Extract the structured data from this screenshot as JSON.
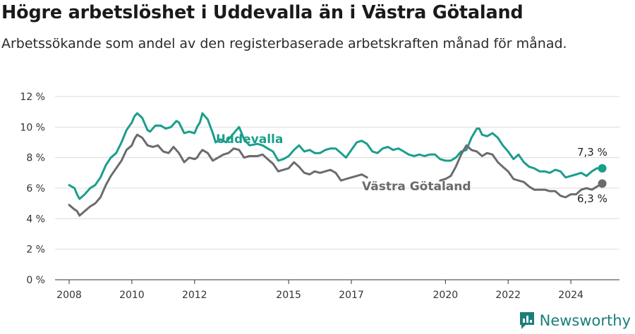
{
  "title": "Högre arbetslöshet i Uddevalla än i Västra Götaland",
  "subtitle": "Arbetssökande som andel av den registerbaserade arbetskraften månad för månad.",
  "brand": "Newsworthy",
  "chart_data": {
    "type": "line",
    "xlim": [
      2007.55,
      2025.55
    ],
    "ylim": [
      0,
      12
    ],
    "y_ticks": [
      0,
      2,
      4,
      6,
      8,
      10,
      12
    ],
    "y_tick_labels": [
      "0 %",
      "2 %",
      "4 %",
      "6 %",
      "8 %",
      "10 %",
      "12 %"
    ],
    "x_ticks": [
      2008,
      2010,
      2012,
      2015,
      2017,
      2020,
      2022,
      2024
    ],
    "x_tick_labels": [
      "2008",
      "2010",
      "2012",
      "2015",
      "2017",
      "2020",
      "2022",
      "2024"
    ],
    "grid": "horizontal",
    "series": [
      {
        "name": "Uddevalla",
        "color": "#1a9e8c",
        "end_label": "7,3 %",
        "points": [
          [
            2008.0,
            6.2
          ],
          [
            2008.17,
            6.0
          ],
          [
            2008.25,
            5.6
          ],
          [
            2008.33,
            5.3
          ],
          [
            2008.5,
            5.6
          ],
          [
            2008.67,
            6.0
          ],
          [
            2008.83,
            6.2
          ],
          [
            2009.0,
            6.7
          ],
          [
            2009.17,
            7.5
          ],
          [
            2009.33,
            8.0
          ],
          [
            2009.5,
            8.3
          ],
          [
            2009.67,
            9.0
          ],
          [
            2009.83,
            9.8
          ],
          [
            2010.0,
            10.3
          ],
          [
            2010.08,
            10.7
          ],
          [
            2010.17,
            10.9
          ],
          [
            2010.33,
            10.6
          ],
          [
            2010.5,
            9.8
          ],
          [
            2010.58,
            9.7
          ],
          [
            2010.75,
            10.1
          ],
          [
            2010.92,
            10.1
          ],
          [
            2011.08,
            9.9
          ],
          [
            2011.25,
            10.0
          ],
          [
            2011.42,
            10.4
          ],
          [
            2011.5,
            10.3
          ],
          [
            2011.67,
            9.6
          ],
          [
            2011.83,
            9.7
          ],
          [
            2012.0,
            9.6
          ],
          [
            2012.08,
            10.0
          ],
          [
            2012.17,
            10.3
          ],
          [
            2012.25,
            10.9
          ],
          [
            2012.42,
            10.5
          ],
          [
            2012.58,
            9.6
          ],
          [
            2012.67,
            9.0
          ],
          [
            2012.83,
            9.2
          ],
          [
            2013.0,
            9.0
          ],
          [
            2013.17,
            9.4
          ],
          [
            2013.33,
            9.8
          ],
          [
            2013.42,
            10.0
          ],
          [
            2013.58,
            9.2
          ],
          [
            2013.75,
            8.8
          ],
          [
            2014.0,
            8.9
          ],
          [
            2014.17,
            8.8
          ],
          [
            2014.33,
            8.6
          ],
          [
            2014.5,
            8.4
          ],
          [
            2014.67,
            7.8
          ],
          [
            2014.83,
            7.9
          ],
          [
            2015.0,
            8.1
          ],
          [
            2015.17,
            8.5
          ],
          [
            2015.33,
            8.8
          ],
          [
            2015.5,
            8.4
          ],
          [
            2015.67,
            8.5
          ],
          [
            2015.83,
            8.3
          ],
          [
            2016.0,
            8.3
          ],
          [
            2016.17,
            8.5
          ],
          [
            2016.33,
            8.6
          ],
          [
            2016.5,
            8.6
          ],
          [
            2016.67,
            8.3
          ],
          [
            2016.83,
            8.0
          ],
          [
            2017.0,
            8.5
          ],
          [
            2017.17,
            9.0
          ],
          [
            2017.33,
            9.1
          ],
          [
            2017.5,
            8.9
          ],
          [
            2017.67,
            8.4
          ],
          [
            2017.83,
            8.3
          ],
          [
            2018.0,
            8.6
          ],
          [
            2018.17,
            8.7
          ],
          [
            2018.33,
            8.5
          ],
          [
            2018.5,
            8.6
          ],
          [
            2018.67,
            8.4
          ],
          [
            2018.83,
            8.2
          ],
          [
            2019.0,
            8.1
          ],
          [
            2019.17,
            8.2
          ],
          [
            2019.33,
            8.1
          ],
          [
            2019.5,
            8.2
          ],
          [
            2019.67,
            8.2
          ],
          [
            2019.83,
            7.9
          ],
          [
            2020.0,
            7.8
          ],
          [
            2020.17,
            7.8
          ],
          [
            2020.33,
            8.0
          ],
          [
            2020.5,
            8.4
          ],
          [
            2020.67,
            8.5
          ],
          [
            2020.83,
            9.3
          ],
          [
            2021.0,
            9.9
          ],
          [
            2021.08,
            9.9
          ],
          [
            2021.17,
            9.5
          ],
          [
            2021.33,
            9.4
          ],
          [
            2021.5,
            9.6
          ],
          [
            2021.67,
            9.3
          ],
          [
            2021.83,
            8.8
          ],
          [
            2022.0,
            8.4
          ],
          [
            2022.17,
            7.9
          ],
          [
            2022.33,
            8.2
          ],
          [
            2022.5,
            7.7
          ],
          [
            2022.67,
            7.4
          ],
          [
            2022.83,
            7.3
          ],
          [
            2023.0,
            7.1
          ],
          [
            2023.17,
            7.1
          ],
          [
            2023.33,
            7.0
          ],
          [
            2023.5,
            7.2
          ],
          [
            2023.67,
            7.1
          ],
          [
            2023.83,
            6.7
          ],
          [
            2024.0,
            6.8
          ],
          [
            2024.17,
            6.9
          ],
          [
            2024.33,
            7.0
          ],
          [
            2024.5,
            6.8
          ],
          [
            2024.67,
            7.1
          ],
          [
            2024.83,
            7.3
          ],
          [
            2025.0,
            7.3
          ]
        ]
      },
      {
        "name": "Västra Götaland",
        "color": "#6b6b6f",
        "end_label": "6,3 %",
        "points": [
          [
            2008.0,
            4.9
          ],
          [
            2008.17,
            4.6
          ],
          [
            2008.25,
            4.5
          ],
          [
            2008.33,
            4.2
          ],
          [
            2008.5,
            4.5
          ],
          [
            2008.67,
            4.8
          ],
          [
            2008.83,
            5.0
          ],
          [
            2009.0,
            5.4
          ],
          [
            2009.17,
            6.2
          ],
          [
            2009.33,
            6.8
          ],
          [
            2009.5,
            7.3
          ],
          [
            2009.67,
            7.8
          ],
          [
            2009.83,
            8.5
          ],
          [
            2010.0,
            8.8
          ],
          [
            2010.08,
            9.2
          ],
          [
            2010.17,
            9.5
          ],
          [
            2010.33,
            9.3
          ],
          [
            2010.5,
            8.8
          ],
          [
            2010.67,
            8.7
          ],
          [
            2010.83,
            8.8
          ],
          [
            2011.0,
            8.4
          ],
          [
            2011.17,
            8.3
          ],
          [
            2011.33,
            8.7
          ],
          [
            2011.5,
            8.3
          ],
          [
            2011.67,
            7.7
          ],
          [
            2011.83,
            8.0
          ],
          [
            2012.0,
            7.9
          ],
          [
            2012.08,
            8.0
          ],
          [
            2012.17,
            8.3
          ],
          [
            2012.25,
            8.5
          ],
          [
            2012.42,
            8.3
          ],
          [
            2012.58,
            7.8
          ],
          [
            2012.75,
            8.0
          ],
          [
            2012.92,
            8.2
          ],
          [
            2013.08,
            8.3
          ],
          [
            2013.25,
            8.6
          ],
          [
            2013.42,
            8.5
          ],
          [
            2013.58,
            8.0
          ],
          [
            2013.75,
            8.1
          ],
          [
            2014.0,
            8.1
          ],
          [
            2014.17,
            8.2
          ],
          [
            2014.33,
            7.9
          ],
          [
            2014.5,
            7.6
          ],
          [
            2014.67,
            7.1
          ],
          [
            2014.83,
            7.2
          ],
          [
            2015.0,
            7.3
          ],
          [
            2015.17,
            7.7
          ],
          [
            2015.33,
            7.4
          ],
          [
            2015.5,
            7.0
          ],
          [
            2015.67,
            6.9
          ],
          [
            2015.83,
            7.1
          ],
          [
            2016.0,
            7.0
          ],
          [
            2016.17,
            7.1
          ],
          [
            2016.33,
            7.2
          ],
          [
            2016.5,
            7.0
          ],
          [
            2016.67,
            6.5
          ],
          [
            2016.83,
            6.6
          ],
          [
            2017.0,
            6.7
          ],
          [
            2017.17,
            6.8
          ],
          [
            2017.33,
            6.9
          ],
          [
            2017.5,
            6.7
          ],
          [
            2019.83,
            6.5
          ],
          [
            2020.0,
            6.6
          ],
          [
            2020.17,
            6.8
          ],
          [
            2020.33,
            7.4
          ],
          [
            2020.5,
            8.2
          ],
          [
            2020.67,
            8.8
          ],
          [
            2020.83,
            8.5
          ],
          [
            2021.0,
            8.4
          ],
          [
            2021.17,
            8.1
          ],
          [
            2021.33,
            8.3
          ],
          [
            2021.5,
            8.2
          ],
          [
            2021.67,
            7.7
          ],
          [
            2021.83,
            7.4
          ],
          [
            2022.0,
            7.1
          ],
          [
            2022.17,
            6.6
          ],
          [
            2022.33,
            6.5
          ],
          [
            2022.5,
            6.4
          ],
          [
            2022.67,
            6.1
          ],
          [
            2022.83,
            5.9
          ],
          [
            2023.0,
            5.9
          ],
          [
            2023.17,
            5.9
          ],
          [
            2023.33,
            5.8
          ],
          [
            2023.5,
            5.8
          ],
          [
            2023.67,
            5.5
          ],
          [
            2023.83,
            5.4
          ],
          [
            2024.0,
            5.6
          ],
          [
            2024.17,
            5.6
          ],
          [
            2024.33,
            5.9
          ],
          [
            2024.5,
            6.0
          ],
          [
            2024.67,
            5.9
          ],
          [
            2024.83,
            6.1
          ],
          [
            2025.0,
            6.3
          ]
        ]
      }
    ]
  }
}
